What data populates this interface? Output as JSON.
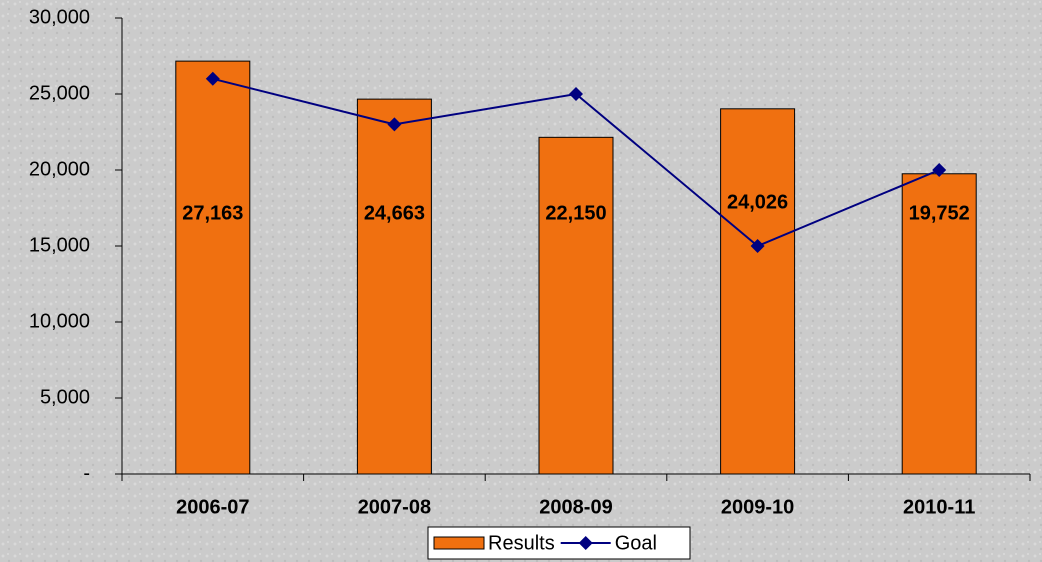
{
  "chart_data": {
    "type": "bar",
    "categories": [
      "2006-07",
      "2007-08",
      "2008-09",
      "2009-10",
      "2010-11"
    ],
    "series": [
      {
        "name": "Results",
        "type": "bar",
        "color": "#f07010",
        "values": [
          27163,
          24663,
          22150,
          24026,
          19752
        ],
        "value_labels": [
          "27,163",
          "24,663",
          "22,150",
          "24,026",
          "19,752"
        ]
      },
      {
        "name": "Goal",
        "type": "line",
        "color": "#000080",
        "values": [
          26000,
          23000,
          25000,
          15000,
          20000
        ]
      }
    ],
    "ylim": [
      0,
      30000
    ],
    "yticks": [
      {
        "value": 0,
        "label": "-"
      },
      {
        "value": 5000,
        "label": "5,000"
      },
      {
        "value": 10000,
        "label": "10,000"
      },
      {
        "value": 15000,
        "label": "15,000"
      },
      {
        "value": 20000,
        "label": "20,000"
      },
      {
        "value": 25000,
        "label": "25,000"
      },
      {
        "value": 30000,
        "label": "30,000"
      }
    ],
    "legend": "bottom"
  }
}
